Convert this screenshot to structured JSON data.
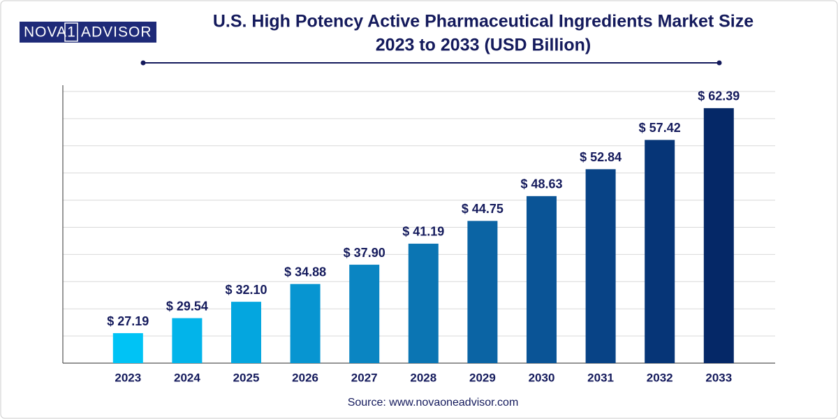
{
  "logo": {
    "left": "NOVA",
    "mid": "1",
    "right": "ADVISOR"
  },
  "source": "Source: www.novaoneadvisor.com",
  "chart_data": {
    "type": "bar",
    "title": "U.S. High Potency Active Pharmaceutical Ingredients Market Size",
    "subtitle": "2023 to 2033 (USD Billion)",
    "categories": [
      "2023",
      "2024",
      "2025",
      "2026",
      "2027",
      "2028",
      "2029",
      "2030",
      "2031",
      "2032",
      "2033"
    ],
    "values": [
      27.19,
      29.54,
      32.1,
      34.88,
      37.9,
      41.19,
      44.75,
      48.63,
      52.84,
      57.42,
      62.39
    ],
    "value_labels": [
      "$ 27.19",
      "$ 29.54",
      "$ 32.10",
      "$ 34.88",
      "$ 37.90",
      "$ 41.19",
      "$ 44.75",
      "$ 48.63",
      "$ 52.84",
      "$ 57.42",
      "$ 62.39"
    ],
    "colors": [
      "#00c3f5",
      "#02b4ea",
      "#04a6df",
      "#0795d1",
      "#0a85c2",
      "#0b75b3",
      "#0b64a4",
      "#0a5496",
      "#084386",
      "#063577",
      "#052867"
    ],
    "ylim": [
      22.5,
      65
    ],
    "grid": true
  }
}
